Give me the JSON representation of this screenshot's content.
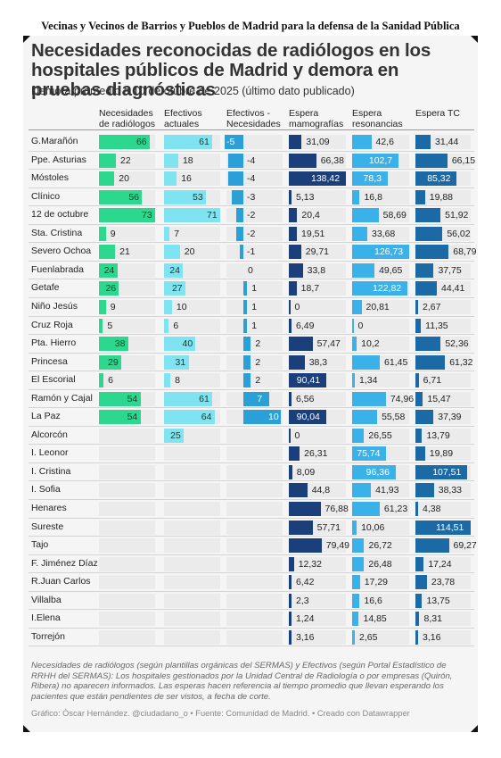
{
  "banner": "Vecinas y Vecinos de Barrios y Pueblos de Madrid para la defensa de la Sanidad Pública",
  "chart_data": {
    "type": "table",
    "title": "Necesidades reconocidas de radiólogos en los hospitales públicos de Madrid y demora en pruebas diagnósticas",
    "subtitle": "Demora promedio a 10 de otubre de 2025 (último dato publicado)",
    "columns": [
      {
        "key": "nec",
        "label": "Necesidades\nde radiólogos",
        "color": "#2bd88e"
      },
      {
        "key": "efe",
        "label": "Efectivos\nactuales",
        "color": "#7fe3f2"
      },
      {
        "key": "dif",
        "label": "Efectivos -\nNecesidades",
        "color": "#2a9fd8"
      },
      {
        "key": "mam",
        "label": "Espera\nmamografías",
        "color": "#1b3f7a"
      },
      {
        "key": "res",
        "label": "Espera\nresonancias",
        "color": "#3ab1e8"
      },
      {
        "key": "tc",
        "label": "Espera TC",
        "color": "#1b6aa6"
      }
    ],
    "rows": [
      {
        "hospital": "G.Marañón",
        "nec": "66",
        "efe": "61",
        "dif": "-5",
        "mam": "31,09",
        "res": "42,6",
        "tc": "31,44"
      },
      {
        "hospital": "Ppe. Asturias",
        "nec": "22",
        "efe": "18",
        "dif": "-4",
        "mam": "66,38",
        "res": "102,7",
        "tc": "66,15"
      },
      {
        "hospital": "Móstoles",
        "nec": "20",
        "efe": "16",
        "dif": "-4",
        "mam": "138,42",
        "res": "78,3",
        "tc": "85,32"
      },
      {
        "hospital": "Clínico",
        "nec": "56",
        "efe": "53",
        "dif": "-3",
        "mam": "5,13",
        "res": "16,8",
        "tc": "19,88"
      },
      {
        "hospital": "12 de octubre",
        "nec": "73",
        "efe": "71",
        "dif": "-2",
        "mam": "20,4",
        "res": "58,69",
        "tc": "51,92"
      },
      {
        "hospital": "Sta. Cristina",
        "nec": "9",
        "efe": "7",
        "dif": "-2",
        "mam": "19,51",
        "res": "33,68",
        "tc": "56,02"
      },
      {
        "hospital": "Severo Ochoa",
        "nec": "21",
        "efe": "20",
        "dif": "-1",
        "mam": "29,71",
        "res": "126,73",
        "tc": "68,79"
      },
      {
        "hospital": "Fuenlabrada",
        "nec": "24",
        "efe": "24",
        "dif": "0",
        "mam": "33,8",
        "res": "49,65",
        "tc": "37,75"
      },
      {
        "hospital": "Getafe",
        "nec": "26",
        "efe": "27",
        "dif": "1",
        "mam": "18,7",
        "res": "122,82",
        "tc": "44,41"
      },
      {
        "hospital": "Niño Jesús",
        "nec": "9",
        "efe": "10",
        "dif": "1",
        "mam": "0",
        "res": "20,81",
        "tc": "2,67"
      },
      {
        "hospital": "Cruz Roja",
        "nec": "5",
        "efe": "6",
        "dif": "1",
        "mam": "6,49",
        "res": "0",
        "tc": "11,35"
      },
      {
        "hospital": "Pta. Hierro",
        "nec": "38",
        "efe": "40",
        "dif": "2",
        "mam": "57,47",
        "res": "10,2",
        "tc": "52,36"
      },
      {
        "hospital": "Princesa",
        "nec": "29",
        "efe": "31",
        "dif": "2",
        "mam": "38,3",
        "res": "61,45",
        "tc": "61,32"
      },
      {
        "hospital": "El Escorial",
        "nec": "6",
        "efe": "8",
        "dif": "2",
        "mam": "90,41",
        "res": "1,34",
        "tc": "6,71"
      },
      {
        "hospital": "Ramón y Cajal",
        "nec": "54",
        "efe": "61",
        "dif": "7",
        "mam": "6,56",
        "res": "74,96",
        "tc": "15,47"
      },
      {
        "hospital": "La Paz",
        "nec": "54",
        "efe": "64",
        "dif": "10",
        "mam": "90,04",
        "res": "55,58",
        "tc": "37,39"
      },
      {
        "hospital": "Alcorcón",
        "nec": "",
        "efe": "25",
        "dif": "",
        "mam": "0",
        "res": "26,55",
        "tc": "13,79"
      },
      {
        "hospital": "I. Leonor",
        "nec": "",
        "efe": "",
        "dif": "",
        "mam": "26,31",
        "res": "75,74",
        "tc": "19,89"
      },
      {
        "hospital": "I. Cristina",
        "nec": "",
        "efe": "",
        "dif": "",
        "mam": "8,09",
        "res": "96,36",
        "tc": "107,51"
      },
      {
        "hospital": "I. Sofia",
        "nec": "",
        "efe": "",
        "dif": "",
        "mam": "44,8",
        "res": "41,93",
        "tc": "38,33"
      },
      {
        "hospital": "Henares",
        "nec": "",
        "efe": "",
        "dif": "",
        "mam": "76,88",
        "res": "61,23",
        "tc": "4,38"
      },
      {
        "hospital": "Sureste",
        "nec": "",
        "efe": "",
        "dif": "",
        "mam": "57,71",
        "res": "10,06",
        "tc": "114,51"
      },
      {
        "hospital": "Tajo",
        "nec": "",
        "efe": "",
        "dif": "",
        "mam": "79,49",
        "res": "26,72",
        "tc": "69,27"
      },
      {
        "hospital": "F. Jiménez Díaz",
        "nec": "",
        "efe": "",
        "dif": "",
        "mam": "12,32",
        "res": "26,48",
        "tc": "17,24"
      },
      {
        "hospital": "R.Juan Carlos",
        "nec": "",
        "efe": "",
        "dif": "",
        "mam": "6,42",
        "res": "17,29",
        "tc": "23,78"
      },
      {
        "hospital": "Villalba",
        "nec": "",
        "efe": "",
        "dif": "",
        "mam": "2,3",
        "res": "16,6",
        "tc": "13,75"
      },
      {
        "hospital": "I.Elena",
        "nec": "",
        "efe": "",
        "dif": "",
        "mam": "1,24",
        "res": "14,85",
        "tc": "8,31"
      },
      {
        "hospital": "Torrejón",
        "nec": "",
        "efe": "",
        "dif": "",
        "mam": "3,16",
        "res": "2,65",
        "tc": "3,16"
      }
    ]
  },
  "footer": {
    "note": "Necesidades de radiólogos (según plantillas orgánicas del SERMAS) y Efectivos (según Portal Estadístico de RRHH del SERMAS): Los hospitales gestionados por la Unidad Central de Radiología o por empresas (Quirón, Ribera) no aparecen informados. Las esperas hacen referencia al tiempo promedio que llevan esperando los pacientes que están pendientes de ser vistos, a fecha de corte.",
    "credit": "Gráfico: Óscar Hernández. @ciudadano_o • Fuente: Comunidad de Madrid. • Creado con Datawrapper"
  }
}
